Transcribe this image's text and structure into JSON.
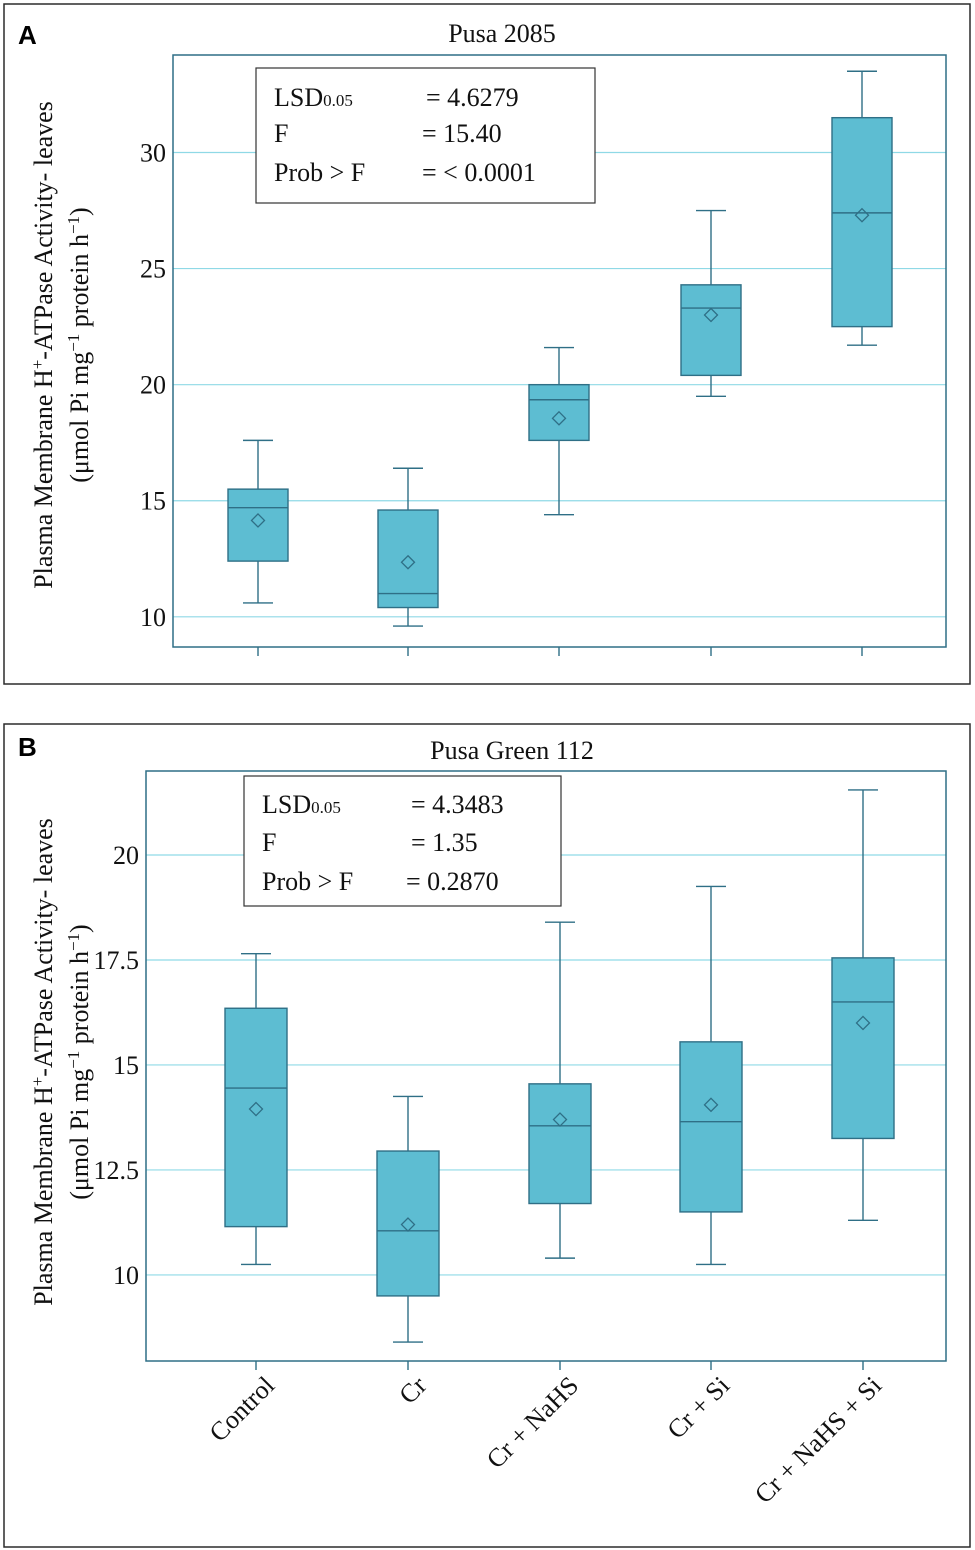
{
  "chart_data": [
    {
      "type": "box",
      "panel_label": "A",
      "title": "Pusa 2085",
      "ylabel_line1": "Plasma Membrane H+-ATPase Activity- leaves",
      "ylabel_line2": "(μmol Pi mg−1 protein h−1)",
      "ylim": [
        8.7,
        34.2
      ],
      "yticks": [
        "10",
        "15",
        "20",
        "25",
        "30"
      ],
      "categories": [
        "Control",
        "Cr",
        "Cr + NaHS",
        "Cr + Si",
        "Cr + NaHS + Si"
      ],
      "boxes": [
        {
          "min": 10.6,
          "q1": 12.4,
          "median": 14.7,
          "q3": 15.5,
          "max": 17.6,
          "mean": 14.15
        },
        {
          "min": 9.6,
          "q1": 10.4,
          "median": 11.0,
          "q3": 14.6,
          "max": 16.4,
          "mean": 12.35
        },
        {
          "min": 14.4,
          "q1": 17.6,
          "median": 19.35,
          "q3": 20.0,
          "max": 21.6,
          "mean": 18.55
        },
        {
          "min": 19.5,
          "q1": 20.4,
          "median": 23.3,
          "q3": 24.3,
          "max": 27.5,
          "mean": 23.0
        },
        {
          "min": 21.7,
          "q1": 22.5,
          "median": 27.4,
          "q3": 31.5,
          "max": 33.5,
          "mean": 27.3
        }
      ],
      "stats": {
        "lsd_label": "LSD",
        "lsd_sub": "0.05",
        "lsd_value": "= 4.6279",
        "f_label": "F",
        "f_value": "= 15.40",
        "p_label": "Prob > F",
        "p_value": "= < 0.0001"
      }
    },
    {
      "type": "box",
      "panel_label": "B",
      "title": "Pusa Green 112",
      "ylabel_line1": "Plasma Membrane H+-ATPase Activity- leaves",
      "ylabel_line2": "(μmol Pi mg−1 protein h−1)",
      "ylim": [
        7.95,
        22.0
      ],
      "yticks": [
        "10",
        "12.5",
        "15",
        "17.5",
        "20"
      ],
      "categories": [
        "Control",
        "Cr",
        "Cr + NaHS",
        "Cr + Si",
        "Cr + NaHS + Si"
      ],
      "boxes": [
        {
          "min": 10.25,
          "q1": 11.15,
          "median": 14.45,
          "q3": 16.35,
          "max": 17.65,
          "mean": 13.95
        },
        {
          "min": 8.4,
          "q1": 9.5,
          "median": 11.05,
          "q3": 12.95,
          "max": 14.25,
          "mean": 11.2
        },
        {
          "min": 10.4,
          "q1": 11.7,
          "median": 13.55,
          "q3": 14.55,
          "max": 18.4,
          "mean": 13.7
        },
        {
          "min": 10.25,
          "q1": 11.5,
          "median": 13.65,
          "q3": 15.55,
          "max": 19.25,
          "mean": 14.05
        },
        {
          "min": 11.3,
          "q1": 13.25,
          "median": 16.5,
          "q3": 17.55,
          "max": 21.55,
          "mean": 16.0
        }
      ],
      "stats": {
        "lsd_label": "LSD",
        "lsd_sub": "0.05",
        "lsd_value": "= 4.3483",
        "f_label": "F",
        "f_value": "= 1.35",
        "p_label": "Prob > F",
        "p_value": "= 0.2870"
      }
    }
  ]
}
